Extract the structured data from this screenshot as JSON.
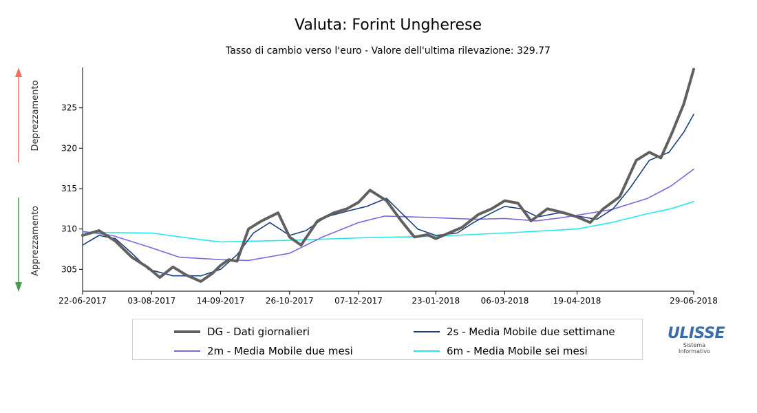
{
  "chart_data": {
    "type": "line",
    "title": "Valuta: Forint Ungherese",
    "subtitle": "Tasso di cambio verso l'euro - Valore dell'ultima rilevazione: 329.77",
    "xlabel": "",
    "ylabel": "",
    "y_annotations": {
      "up": "Deprezzamento",
      "down": "Apprezzamento",
      "up_color": "#f07060",
      "down_color": "#4a9a4a"
    },
    "x_ticks": [
      "22-06-2017",
      "03-08-2017",
      "14-09-2017",
      "26-10-2017",
      "07-12-2017",
      "23-01-2018",
      "06-03-2018",
      "19-04-2018",
      "29-06-2018"
    ],
    "y_ticks": [
      305,
      310,
      315,
      320,
      325
    ],
    "ylim": [
      302.3,
      330
    ],
    "xlim": [
      "22-06-2017",
      "29-06-2018"
    ],
    "grid": false,
    "legend_placement": "bottom",
    "series": [
      {
        "name": "DG - Dati giornalieri",
        "color": "#606060",
        "points": [
          [
            "22-06-2017",
            309.2
          ],
          [
            "02-07-2017",
            309.8
          ],
          [
            "12-07-2017",
            308.5
          ],
          [
            "22-07-2017",
            306.5
          ],
          [
            "01-08-2017",
            305.2
          ],
          [
            "08-08-2017",
            304.0
          ],
          [
            "16-08-2017",
            305.3
          ],
          [
            "24-08-2017",
            304.3
          ],
          [
            "02-09-2017",
            303.5
          ],
          [
            "09-09-2017",
            304.5
          ],
          [
            "14-09-2017",
            305.5
          ],
          [
            "19-09-2017",
            306.2
          ],
          [
            "24-09-2017",
            306.0
          ],
          [
            "01-10-2017",
            310.0
          ],
          [
            "09-10-2017",
            311.0
          ],
          [
            "19-10-2017",
            312.0
          ],
          [
            "26-10-2017",
            309.0
          ],
          [
            "02-11-2017",
            308.0
          ],
          [
            "12-11-2017",
            311.0
          ],
          [
            "22-11-2017",
            312.0
          ],
          [
            "30-11-2017",
            312.5
          ],
          [
            "07-12-2017",
            313.3
          ],
          [
            "14-12-2017",
            314.8
          ],
          [
            "24-12-2017",
            313.5
          ],
          [
            "02-01-2018",
            311.0
          ],
          [
            "10-01-2018",
            309.0
          ],
          [
            "18-01-2018",
            309.3
          ],
          [
            "23-01-2018",
            308.8
          ],
          [
            "31-01-2018",
            309.5
          ],
          [
            "08-02-2018",
            310.2
          ],
          [
            "18-02-2018",
            311.8
          ],
          [
            "26-02-2018",
            312.5
          ],
          [
            "06-03-2018",
            313.5
          ],
          [
            "14-03-2018",
            313.2
          ],
          [
            "22-03-2018",
            311.0
          ],
          [
            "01-04-2018",
            312.5
          ],
          [
            "11-04-2018",
            312.0
          ],
          [
            "19-04-2018",
            311.5
          ],
          [
            "27-04-2018",
            310.8
          ],
          [
            "05-05-2018",
            312.5
          ],
          [
            "15-05-2018",
            314.0
          ],
          [
            "25-05-2018",
            318.5
          ],
          [
            "02-06-2018",
            319.5
          ],
          [
            "09-06-2018",
            318.8
          ],
          [
            "16-06-2018",
            322.0
          ],
          [
            "23-06-2018",
            325.5
          ],
          [
            "29-06-2018",
            329.77
          ]
        ]
      },
      {
        "name": "2s - Media Mobile due settimane",
        "color": "#1a3f7a",
        "points": [
          [
            "22-06-2017",
            308.0
          ],
          [
            "02-07-2017",
            309.2
          ],
          [
            "12-07-2017",
            308.8
          ],
          [
            "22-07-2017",
            307.0
          ],
          [
            "01-08-2017",
            305.0
          ],
          [
            "16-08-2017",
            304.2
          ],
          [
            "02-09-2017",
            304.2
          ],
          [
            "14-09-2017",
            305.0
          ],
          [
            "24-09-2017",
            306.8
          ],
          [
            "04-10-2017",
            309.5
          ],
          [
            "14-10-2017",
            310.8
          ],
          [
            "26-10-2017",
            309.2
          ],
          [
            "05-11-2017",
            309.8
          ],
          [
            "17-11-2017",
            311.5
          ],
          [
            "30-11-2017",
            312.2
          ],
          [
            "12-12-2017",
            312.8
          ],
          [
            "24-12-2017",
            313.8
          ],
          [
            "02-01-2018",
            312.0
          ],
          [
            "12-01-2018",
            310.0
          ],
          [
            "23-01-2018",
            309.2
          ],
          [
            "05-02-2018",
            309.5
          ],
          [
            "15-02-2018",
            310.8
          ],
          [
            "26-02-2018",
            312.0
          ],
          [
            "06-03-2018",
            312.8
          ],
          [
            "16-03-2018",
            312.5
          ],
          [
            "26-03-2018",
            311.5
          ],
          [
            "08-04-2018",
            312.0
          ],
          [
            "19-04-2018",
            311.6
          ],
          [
            "01-05-2018",
            311.2
          ],
          [
            "11-05-2018",
            312.5
          ],
          [
            "21-05-2018",
            315.0
          ],
          [
            "02-06-2018",
            318.5
          ],
          [
            "14-06-2018",
            319.5
          ],
          [
            "23-06-2018",
            322.0
          ],
          [
            "29-06-2018",
            324.2
          ]
        ]
      },
      {
        "name": "2m - Media Mobile due mesi",
        "color": "#7b68e0",
        "points": [
          [
            "22-06-2017",
            309.7
          ],
          [
            "10-07-2017",
            309.2
          ],
          [
            "01-08-2017",
            307.8
          ],
          [
            "20-08-2017",
            306.5
          ],
          [
            "14-09-2017",
            306.2
          ],
          [
            "01-10-2017",
            306.1
          ],
          [
            "26-10-2017",
            307.0
          ],
          [
            "15-11-2017",
            309.0
          ],
          [
            "07-12-2017",
            310.8
          ],
          [
            "23-12-2017",
            311.6
          ],
          [
            "23-01-2018",
            311.4
          ],
          [
            "15-02-2018",
            311.2
          ],
          [
            "06-03-2018",
            311.3
          ],
          [
            "25-03-2018",
            311.0
          ],
          [
            "10-04-2018",
            311.4
          ],
          [
            "19-04-2018",
            311.7
          ],
          [
            "10-05-2018",
            312.4
          ],
          [
            "01-06-2018",
            313.8
          ],
          [
            "15-06-2018",
            315.3
          ],
          [
            "29-06-2018",
            317.4
          ]
        ]
      },
      {
        "name": "6m - Media Mobile sei mesi",
        "color": "#22eaf2",
        "points": [
          [
            "22-06-2017",
            309.6
          ],
          [
            "03-08-2017",
            309.5
          ],
          [
            "01-09-2017",
            308.7
          ],
          [
            "14-09-2017",
            308.4
          ],
          [
            "26-10-2017",
            308.6
          ],
          [
            "07-12-2017",
            308.9
          ],
          [
            "23-01-2018",
            309.1
          ],
          [
            "06-03-2018",
            309.5
          ],
          [
            "19-04-2018",
            310.0
          ],
          [
            "10-05-2018",
            310.8
          ],
          [
            "01-06-2018",
            311.9
          ],
          [
            "15-06-2018",
            312.5
          ],
          [
            "29-06-2018",
            313.4
          ]
        ]
      }
    ]
  },
  "legend": {
    "items": [
      {
        "label": "DG - Dati giornalieri",
        "color": "#606060"
      },
      {
        "label": "2s - Media Mobile due settimane",
        "color": "#1a3f7a"
      },
      {
        "label": "2m - Media Mobile due mesi",
        "color": "#7b68e0"
      },
      {
        "label": "6m - Media Mobile sei mesi",
        "color": "#22eaf2"
      }
    ]
  },
  "logo": {
    "main": "ULISSE",
    "sub1": "Sistema",
    "sub2": "Informativo"
  }
}
